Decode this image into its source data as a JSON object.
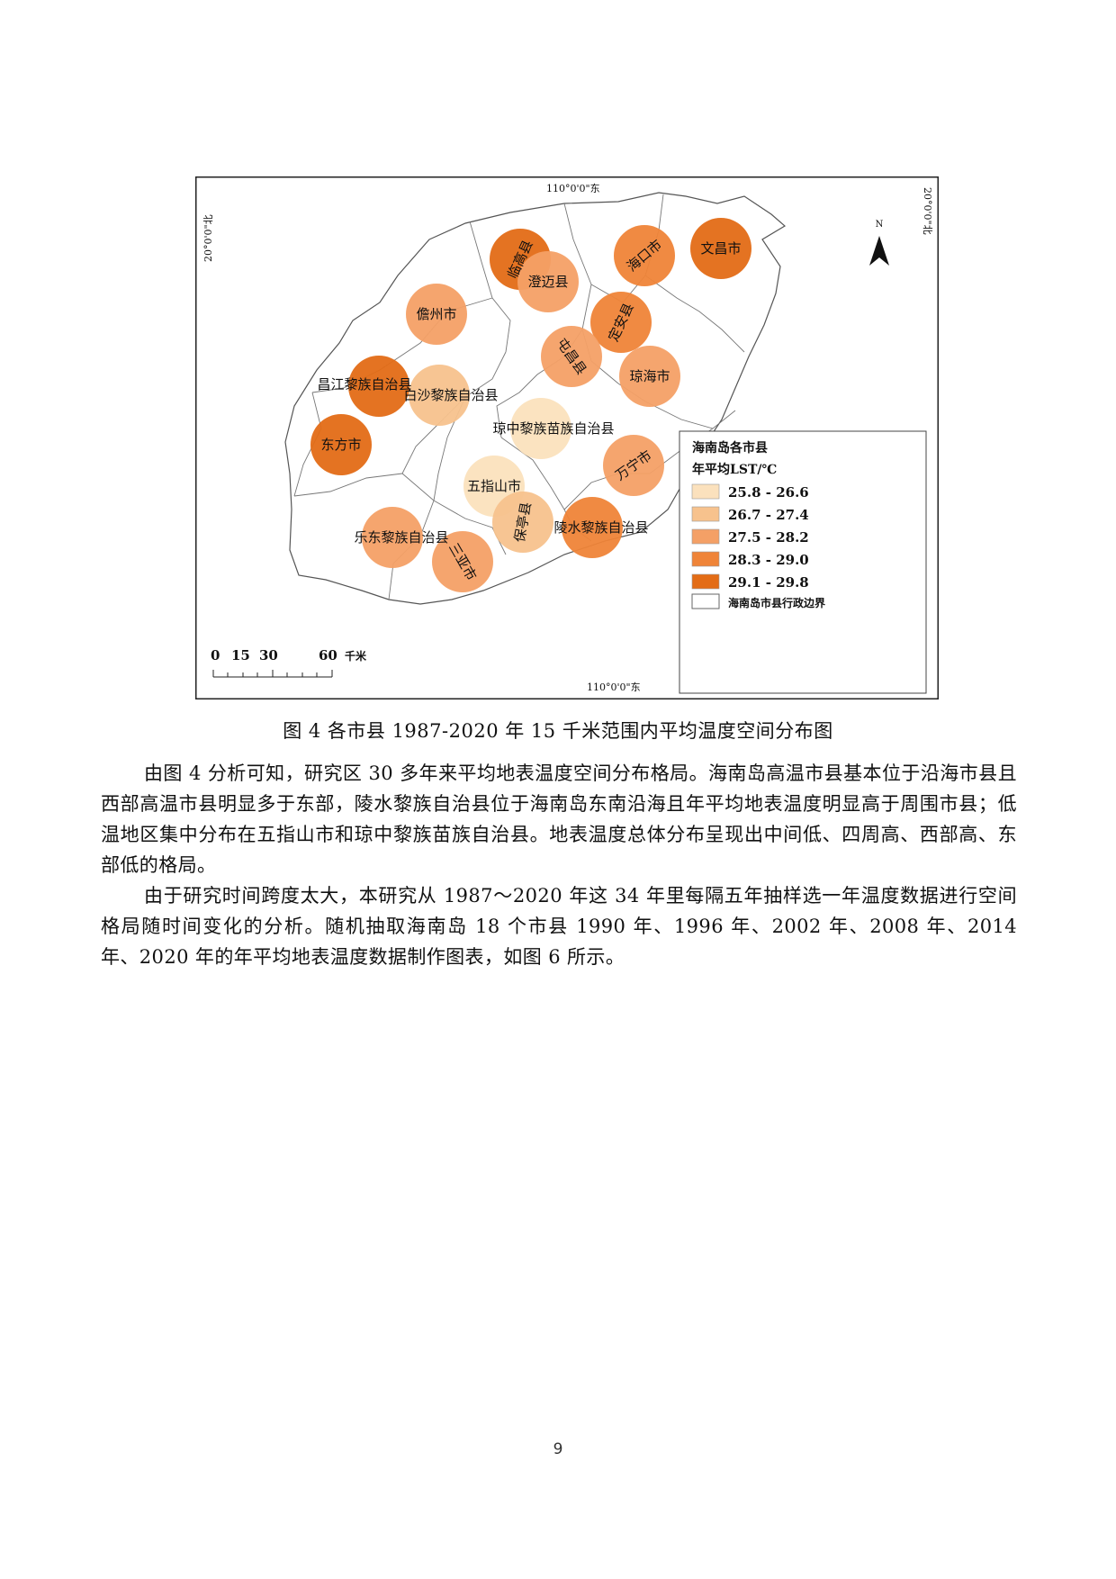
{
  "figure": {
    "top_lon_label": "110°0'0\"东",
    "bottom_lon_label": "110°0'0\"东",
    "left_lat_label": "20°0'0\"北",
    "right_lat_label": "20°0'0\"北",
    "north_label": "N",
    "scale": {
      "ticks": [
        "0",
        "15",
        "30",
        "60"
      ],
      "unit": "千米"
    },
    "legend": {
      "title_line1": "海南岛各市县",
      "title_line2": "年平均LST/℃",
      "items": [
        {
          "label": "25.8 - 26.6",
          "color": "#fbe1bd"
        },
        {
          "label": "26.7 - 27.4",
          "color": "#f7c28d"
        },
        {
          "label": "27.5 - 28.2",
          "color": "#f4a066"
        },
        {
          "label": "28.3 - 29.0",
          "color": "#ef8438"
        },
        {
          "label": "29.1 - 29.8",
          "color": "#e36c16"
        }
      ],
      "boundary_label": "海南岛市县行政边界"
    },
    "counties": [
      {
        "name": "临高县",
        "class": 4
      },
      {
        "name": "澄迈县",
        "class": 2
      },
      {
        "name": "海口市",
        "class": 3
      },
      {
        "name": "文昌市",
        "class": 4
      },
      {
        "name": "儋州市",
        "class": 2
      },
      {
        "name": "定安县",
        "class": 3
      },
      {
        "name": "屯昌县",
        "class": 2
      },
      {
        "name": "琼海市",
        "class": 2
      },
      {
        "name": "昌江黎族自治县",
        "class": 4
      },
      {
        "name": "白沙黎族自治县",
        "class": 1
      },
      {
        "name": "琼中黎族苗族自治县",
        "class": 0
      },
      {
        "name": "东方市",
        "class": 4
      },
      {
        "name": "万宁市",
        "class": 2
      },
      {
        "name": "五指山市",
        "class": 0
      },
      {
        "name": "保亭县",
        "class": 1
      },
      {
        "name": "陵水黎族自治县",
        "class": 3
      },
      {
        "name": "乐东黎族自治县",
        "class": 2
      },
      {
        "name": "三亚市",
        "class": 2
      }
    ]
  },
  "caption": "图 4 各市县 1987-2020 年 15 千米范围内平均温度空间分布图",
  "paragraphs": [
    "由图 4 分析可知，研究区 30 多年来平均地表温度空间分布格局。海南岛高温市县基本位于沿海市县且西部高温市县明显多于东部，陵水黎族自治县位于海南岛东南沿海且年平均地表温度明显高于周围市县；低温地区集中分布在五指山市和琼中黎族苗族自治县。地表温度总体分布呈现出中间低、四周高、西部高、东部低的格局。",
    "由于研究时间跨度太大，本研究从 1987～2020 年这 34 年里每隔五年抽样选一年温度数据进行空间格局随时间变化的分析。随机抽取海南岛 18 个市县 1990 年、1996 年、2002 年、2008 年、2014 年、2020 年的年平均地表温度数据制作图表，如图 6 所示。"
  ],
  "page_number": "9"
}
